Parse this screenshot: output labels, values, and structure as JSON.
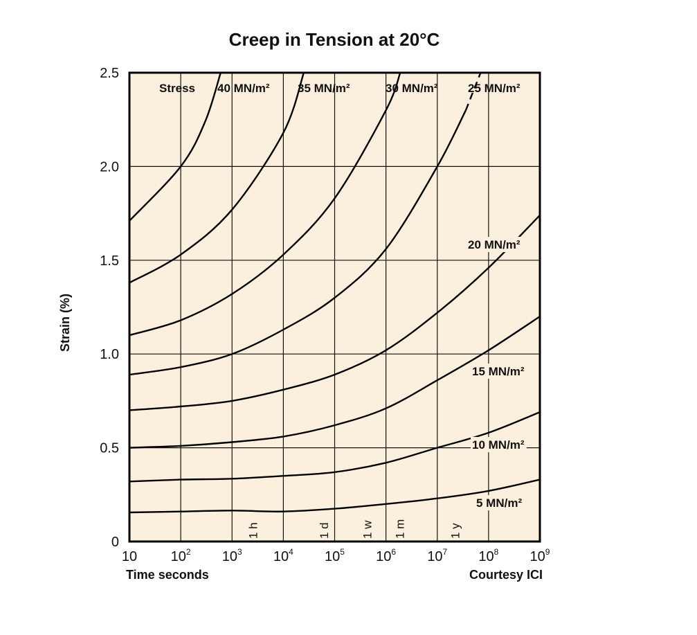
{
  "chart_data": {
    "type": "line",
    "title": "Creep in Tension at 20°C",
    "xlabel": "Time seconds",
    "ylabel": "Strain (%)",
    "x_scale": "log",
    "xlim": [
      10,
      1000000000
    ],
    "ylim": [
      0,
      2.5
    ],
    "x_ticks": [
      {
        "base": "10",
        "exp": ""
      },
      {
        "base": "10",
        "exp": "2"
      },
      {
        "base": "10",
        "exp": "3"
      },
      {
        "base": "10",
        "exp": "4"
      },
      {
        "base": "10",
        "exp": "5"
      },
      {
        "base": "10",
        "exp": "6"
      },
      {
        "base": "10",
        "exp": "7"
      },
      {
        "base": "10",
        "exp": "8"
      },
      {
        "base": "10",
        "exp": "9"
      }
    ],
    "y_ticks": [
      "0",
      "0.5",
      "1.0",
      "1.5",
      "2.0",
      "2.5"
    ],
    "grid": true,
    "stress_header": "Stress",
    "courtesy": "Courtesy ICI",
    "time_markers": [
      {
        "label": "1 h",
        "x": 3600
      },
      {
        "label": "1 d",
        "x": 86400
      },
      {
        "label": "1 w",
        "x": 604800
      },
      {
        "label": "1 m",
        "x": 2592000
      },
      {
        "label": "1 y",
        "x": 31536000
      }
    ],
    "series": [
      {
        "name": "5 MN/m²",
        "label": "5 MN/m²",
        "x": [
          10,
          100,
          1000,
          10000,
          100000,
          1000000,
          10000000,
          100000000,
          1000000000
        ],
        "y": [
          0.155,
          0.16,
          0.165,
          0.16,
          0.175,
          0.2,
          0.23,
          0.27,
          0.33
        ]
      },
      {
        "name": "10 MN/m²",
        "label": "10 MN/m²",
        "x": [
          10,
          100,
          1000,
          10000,
          100000,
          1000000,
          10000000,
          100000000,
          1000000000
        ],
        "y": [
          0.32,
          0.33,
          0.335,
          0.35,
          0.37,
          0.42,
          0.5,
          0.58,
          0.69
        ]
      },
      {
        "name": "15 MN/m²",
        "label": "15 MN/m²",
        "x": [
          10,
          100,
          1000,
          10000,
          100000,
          1000000,
          10000000,
          100000000,
          1000000000
        ],
        "y": [
          0.5,
          0.51,
          0.53,
          0.56,
          0.62,
          0.71,
          0.86,
          1.02,
          1.2
        ]
      },
      {
        "name": "20 MN/m²",
        "label": "20 MN/m²",
        "x": [
          10,
          100,
          1000,
          10000,
          100000,
          1000000,
          10000000,
          100000000,
          1000000000
        ],
        "y": [
          0.7,
          0.72,
          0.75,
          0.81,
          0.89,
          1.02,
          1.22,
          1.46,
          1.74
        ]
      },
      {
        "name": "25 MN/m²",
        "label": "25 MN/m²",
        "x": [
          10,
          100,
          1000,
          10000,
          100000,
          1000000,
          10000000,
          36000000
        ],
        "y": [
          0.89,
          0.93,
          1.0,
          1.13,
          1.3,
          1.56,
          2.0,
          2.3
        ],
        "dashed_x": [
          36000000,
          70000000
        ],
        "dashed_y": [
          2.3,
          2.5
        ]
      },
      {
        "name": "30 MN/m²",
        "label": "30 MN/m²",
        "x": [
          10,
          100,
          1000,
          10000,
          100000,
          1000000,
          1900000
        ],
        "y": [
          1.1,
          1.18,
          1.32,
          1.53,
          1.83,
          2.3,
          2.5
        ]
      },
      {
        "name": "35 MN/m²",
        "label": "35 MN/m²",
        "x": [
          10,
          100,
          1000,
          10000,
          25000
        ],
        "y": [
          1.38,
          1.53,
          1.77,
          2.18,
          2.5
        ]
      },
      {
        "name": "40 MN/m²",
        "label": "40 MN/m²",
        "x": [
          10,
          100,
          300,
          600
        ],
        "y": [
          1.71,
          2.0,
          2.24,
          2.5
        ]
      }
    ]
  }
}
